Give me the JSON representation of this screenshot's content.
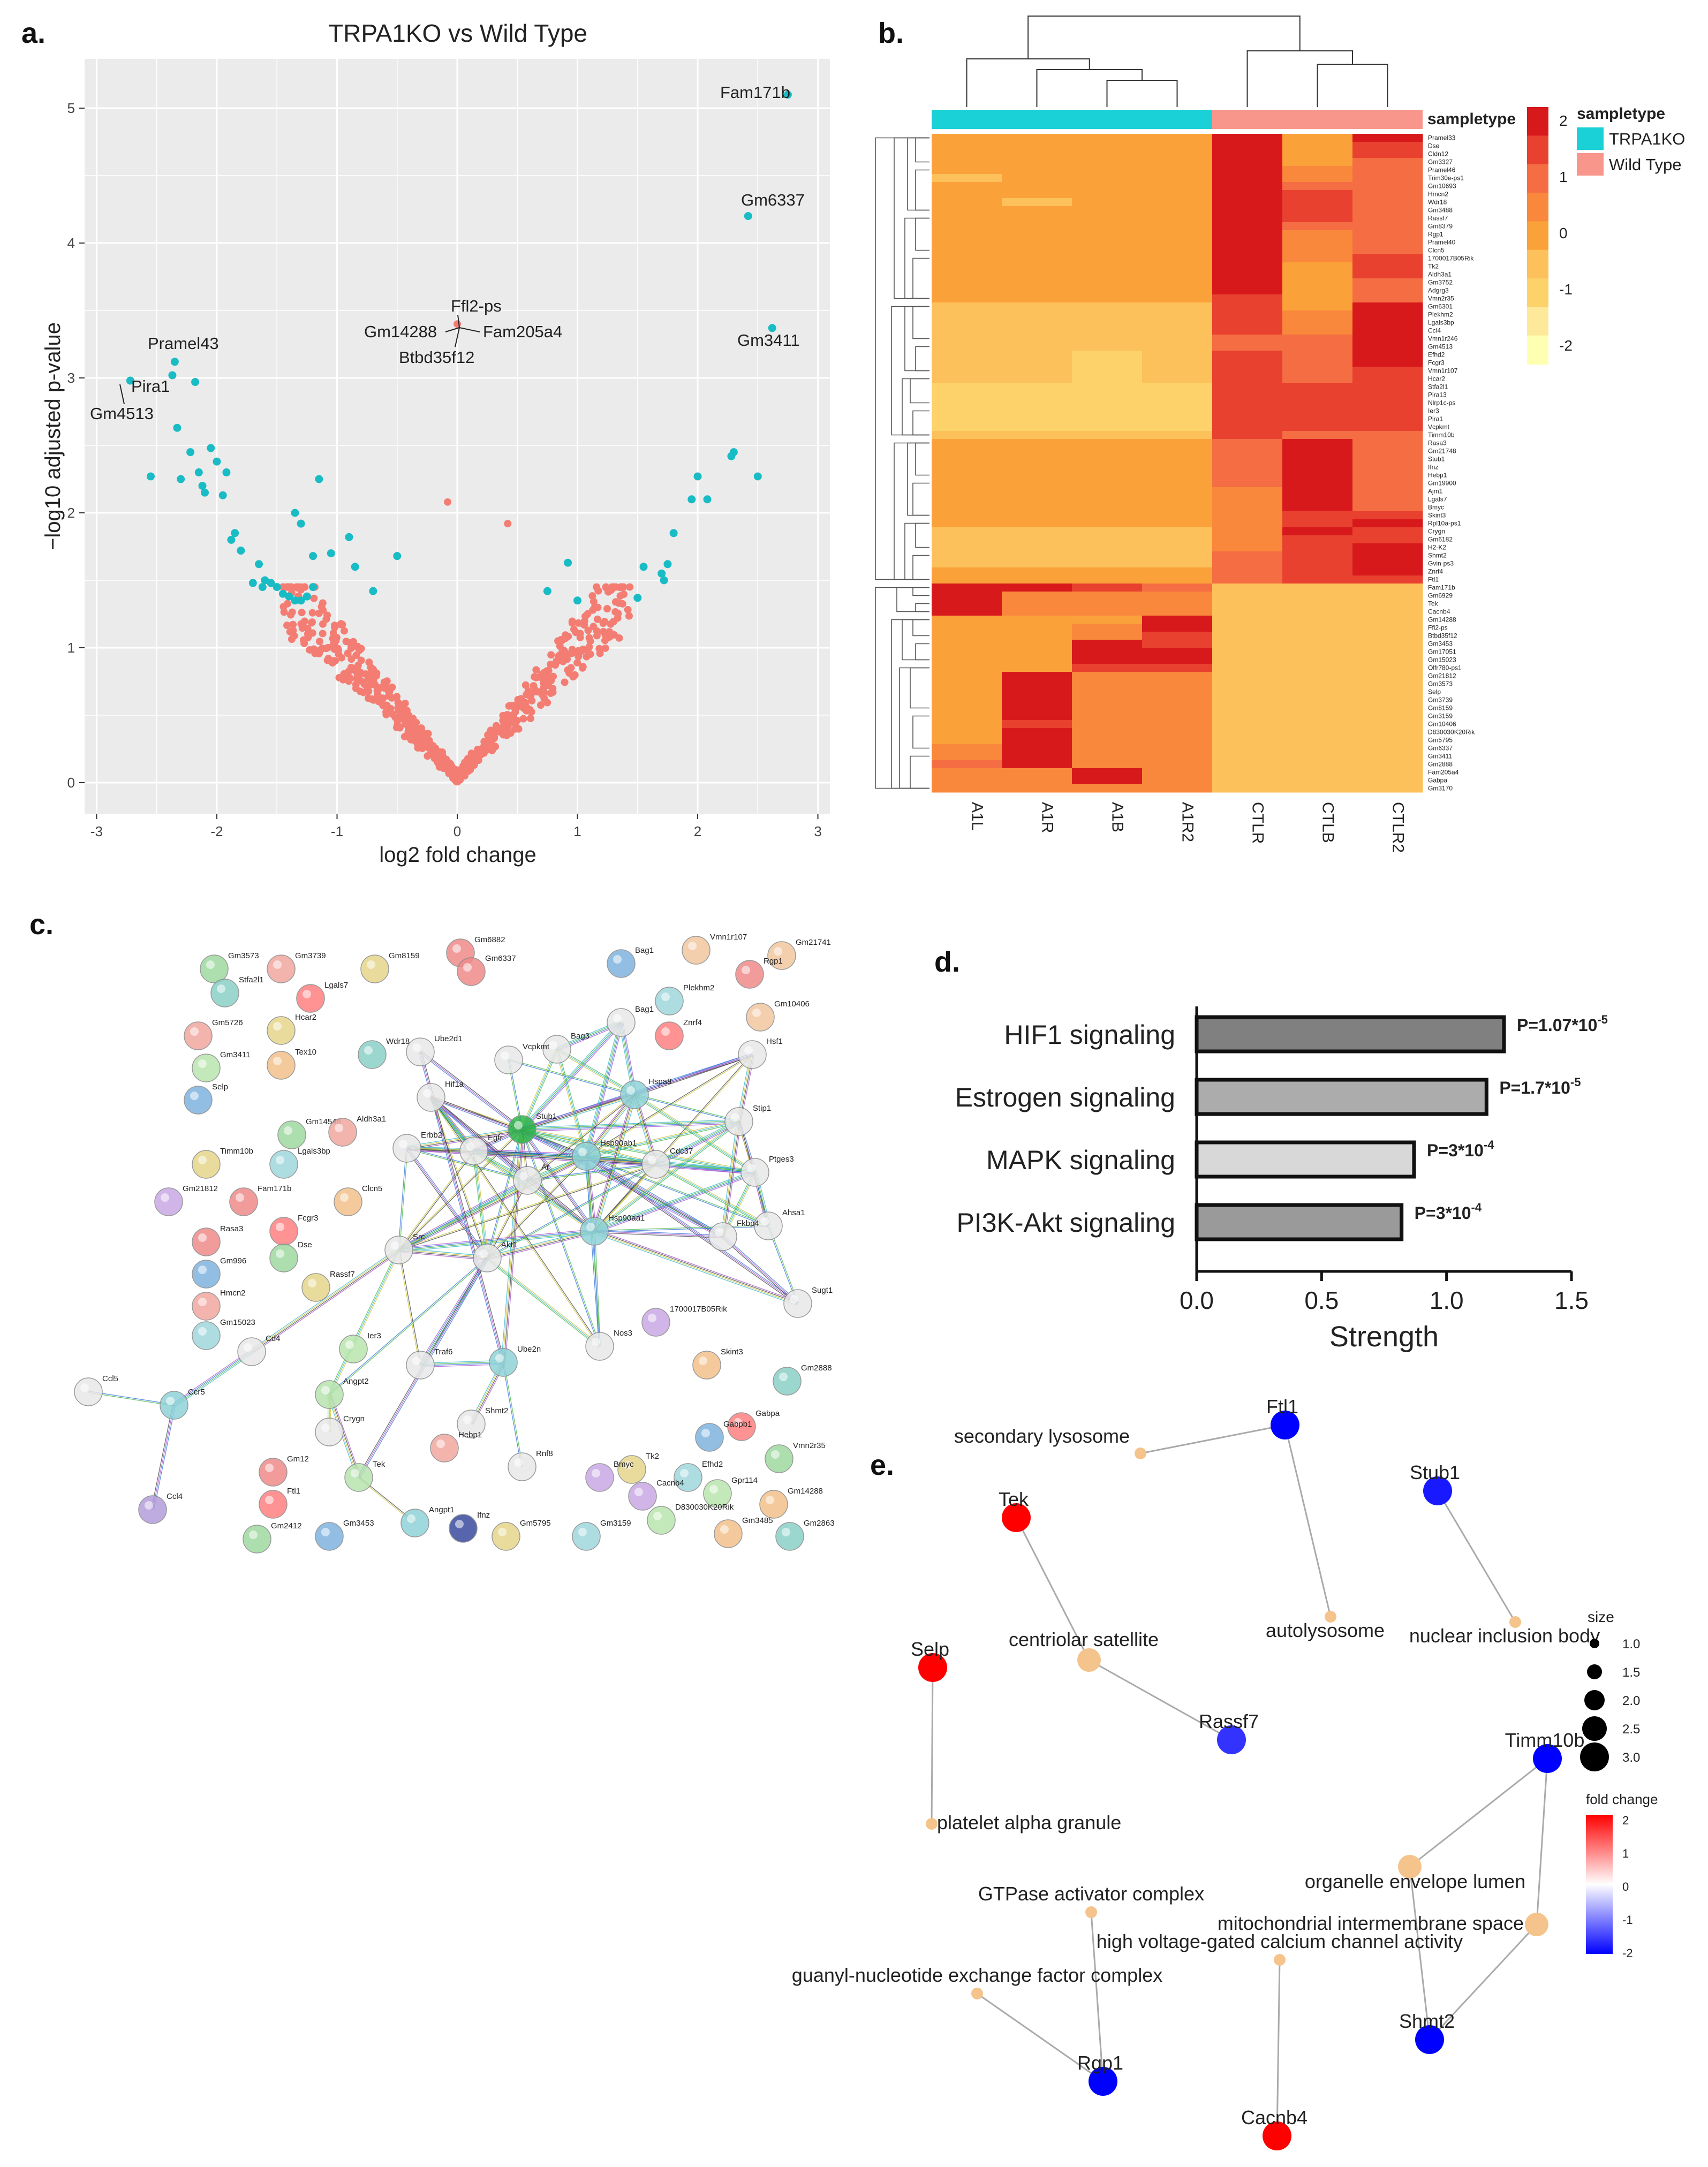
{
  "panel_labels": {
    "a": "a.",
    "b": "b.",
    "c": "c.",
    "d": "d.",
    "e": "e."
  },
  "volcano": {
    "title": "TRPA1KO vs Wild Type",
    "xlabel": "log2 fold change",
    "ylabel": "−log10 adjusted p-value",
    "xticks": [
      "-3",
      "-2",
      "-1",
      "0",
      "1",
      "2",
      "3"
    ],
    "yticks": [
      "0",
      "1",
      "2",
      "3",
      "4",
      "5"
    ],
    "colors": {
      "sig": "#19bcc4",
      "nonsig": "#f47d73",
      "panel": "#ebebeb"
    },
    "gene_labels": [
      "Fam171b",
      "Gm6337",
      "Gm3411",
      "Pramel43",
      "Pira1",
      "Gm4513",
      "Ffl2-ps",
      "Gm14288",
      "Fam205a4",
      "Btbd35f12"
    ]
  },
  "heatmap": {
    "columns": [
      "A1L",
      "A1R",
      "A1B",
      "A1R2",
      "CTLR",
      "CTLB",
      "CTLR2"
    ],
    "sampletype_label": "sampletype",
    "legend_title": "sampletype",
    "groups": [
      {
        "name": "TRPA1KO",
        "color": "#19d1d6"
      },
      {
        "name": "Wild Type",
        "color": "#f9968c"
      }
    ],
    "scale_ticks": [
      "2",
      "1",
      "0",
      "-1",
      "-2"
    ],
    "scale_colors": [
      "#d7191c",
      "#f46d43",
      "#fba13a",
      "#fdd26a",
      "#ffffb2"
    ],
    "row_labels": [
      "Pramel33",
      "Dse",
      "Cldn12",
      "Gm3327",
      "Pramel46",
      "Trim30e-ps1",
      "Gm10693",
      "Hmcn2",
      "Wdr18",
      "Gm3488",
      "Rassf7",
      "Gm8379",
      "Rgp1",
      "Pramel40",
      "Clcn5",
      "1700017B05Rik",
      "Tk2",
      "Aldh3a1",
      "Gm3752",
      "Adgrg3",
      "Vmn2r35",
      "Gm6301",
      "Plekhm2",
      "Lgals3bp",
      "Ccl4",
      "Vmn1r246",
      "Gm4513",
      "Efhd2",
      "Fcgr3",
      "Vmn1r107",
      "Hcar2",
      "Stfa2l1",
      "Pira13",
      "Nlrp1c-ps",
      "Ier3",
      "Pira1",
      "Vcpkmt",
      "Timm10b",
      "Rasa3",
      "Gm21748",
      "Stub1",
      "Ifnz",
      "Hebp1",
      "Gm19900",
      "Ajm1",
      "Lgals7",
      "Bmyc",
      "Skint3",
      "Rpl10a-ps1",
      "Crygn",
      "Gm6182",
      "H2-K2",
      "Shmt2",
      "Gvin-ps3",
      "Znrf4",
      "Ftl1",
      "Fam171b",
      "Gm6929",
      "Tek",
      "Cacnb4",
      "Gm14288",
      "Ffl2-ps",
      "Btbd35f12",
      "Gm3453",
      "Gm17051",
      "Gm15023",
      "Olfr780-ps1",
      "Gm21812",
      "Gm3573",
      "Selp",
      "Gm3739",
      "Gm8159",
      "Gm3159",
      "Gm10406",
      "D830030K20Rik",
      "Gm5795",
      "Gm6337",
      "Gm3411",
      "Gm2888",
      "Fam205a4",
      "Gabpa",
      "Gm3170"
    ],
    "values": [
      [
        0,
        0,
        0,
        0,
        2,
        0,
        2
      ],
      [
        0,
        0,
        0,
        0,
        2,
        0,
        1.5
      ],
      [
        0,
        0,
        0,
        0,
        2,
        0,
        1.5
      ],
      [
        0,
        0,
        0,
        0,
        2,
        0,
        1
      ],
      [
        0,
        0,
        0,
        0,
        2,
        0.5,
        1
      ],
      [
        -0.5,
        0,
        0,
        0,
        2,
        0.5,
        1
      ],
      [
        0,
        0,
        0,
        0,
        2,
        1,
        1
      ],
      [
        0,
        0,
        0,
        0,
        2,
        1.5,
        1
      ],
      [
        0,
        -0.5,
        0,
        0,
        2,
        1.5,
        1
      ],
      [
        0,
        0,
        0,
        0,
        2,
        1.5,
        1
      ],
      [
        0,
        0,
        0,
        0,
        2,
        1.5,
        1
      ],
      [
        0,
        0,
        0,
        0,
        2,
        1,
        1
      ],
      [
        0,
        0,
        0,
        0,
        2,
        0.5,
        1
      ],
      [
        0,
        0,
        0,
        0,
        2,
        0.5,
        1
      ],
      [
        0,
        0,
        0,
        0,
        2,
        0.5,
        1
      ],
      [
        0,
        0,
        0,
        0,
        2,
        0.5,
        1.5
      ],
      [
        0,
        0,
        0,
        0,
        2,
        0,
        1.5
      ],
      [
        0,
        0,
        0,
        0,
        2,
        0,
        1.5
      ],
      [
        0,
        0,
        0,
        0,
        2,
        0,
        1
      ],
      [
        0,
        0,
        0,
        0,
        2,
        0,
        1
      ],
      [
        0,
        0,
        0,
        0,
        1.5,
        0,
        1
      ],
      [
        -0.5,
        -0.5,
        -0.5,
        -0.5,
        1.5,
        0,
        2
      ],
      [
        -0.5,
        -0.5,
        -0.5,
        -0.5,
        1.5,
        0.5,
        2
      ],
      [
        -0.5,
        -0.5,
        -0.5,
        -0.5,
        1.5,
        0.5,
        2
      ],
      [
        -0.5,
        -0.5,
        -0.5,
        -0.5,
        1.5,
        0.5,
        2
      ],
      [
        -0.5,
        -0.5,
        -0.5,
        -0.5,
        1,
        1,
        2
      ],
      [
        -0.5,
        -0.5,
        -0.5,
        -0.5,
        1,
        1,
        2
      ],
      [
        -0.5,
        -0.5,
        -1,
        -0.5,
        1.5,
        1,
        2
      ],
      [
        -0.5,
        -0.5,
        -1,
        -0.5,
        1.5,
        1,
        2
      ],
      [
        -0.5,
        -0.5,
        -1,
        -0.5,
        1.5,
        1,
        1.5
      ],
      [
        -0.5,
        -0.5,
        -1,
        -0.5,
        1.5,
        1,
        1.5
      ],
      [
        -1,
        -1,
        -1,
        -1,
        1.5,
        1.5,
        1.5
      ],
      [
        -1,
        -1,
        -1,
        -1,
        1.5,
        1.5,
        1.5
      ],
      [
        -1,
        -1,
        -1,
        -1,
        1.5,
        1.5,
        1.5
      ],
      [
        -1,
        -1,
        -1,
        -1,
        1.5,
        1.5,
        1.5
      ],
      [
        -1,
        -1,
        -1,
        -1,
        1.5,
        1.5,
        1.5
      ],
      [
        -1,
        -1,
        -1,
        -1,
        1.5,
        1.5,
        1.5
      ],
      [
        -0.5,
        -0.5,
        -0.5,
        -0.5,
        1.5,
        1,
        1
      ],
      [
        0,
        0,
        0,
        0,
        1,
        2,
        1
      ],
      [
        0,
        0,
        0,
        0,
        1,
        2,
        1
      ],
      [
        0,
        0,
        0,
        0,
        1,
        2,
        1
      ],
      [
        0,
        0,
        0,
        0,
        1,
        2,
        1
      ],
      [
        0,
        0,
        0,
        0,
        1,
        2,
        1
      ],
      [
        0,
        0,
        0,
        0,
        1,
        2,
        1
      ],
      [
        0,
        0,
        0,
        0,
        0.5,
        2,
        1
      ],
      [
        0,
        0,
        0,
        0,
        0.5,
        2,
        1
      ],
      [
        0,
        0,
        0,
        0,
        0.5,
        2,
        1
      ],
      [
        0,
        0,
        0,
        0,
        0.5,
        1.5,
        1.5
      ],
      [
        0,
        0,
        0,
        0,
        0.5,
        1.5,
        2
      ],
      [
        -0.5,
        -0.5,
        -0.5,
        -0.5,
        0.5,
        2,
        1.5
      ],
      [
        -0.5,
        -0.5,
        -0.5,
        -0.5,
        0.5,
        1.5,
        1.5
      ],
      [
        -0.5,
        -0.5,
        -0.5,
        -0.5,
        0.5,
        1.5,
        2
      ],
      [
        -0.5,
        -0.5,
        -0.5,
        -0.5,
        1,
        1.5,
        2
      ],
      [
        -0.5,
        -0.5,
        -0.5,
        -0.5,
        1,
        1.5,
        2
      ],
      [
        0,
        0,
        0,
        0,
        1,
        1.5,
        2
      ],
      [
        0,
        0,
        0,
        0,
        1,
        1.5,
        1.5
      ],
      [
        2,
        2,
        1.5,
        1,
        -0.5,
        -0.5,
        -0.5
      ],
      [
        2,
        0.5,
        0.5,
        0.5,
        -0.5,
        -0.5,
        -0.5
      ],
      [
        2,
        0.5,
        0.5,
        0.5,
        -0.5,
        -0.5,
        -0.5
      ],
      [
        2,
        0.5,
        0.5,
        0.5,
        -0.5,
        -0.5,
        -0.5
      ],
      [
        0,
        0,
        0,
        2,
        -0.5,
        -0.5,
        -0.5
      ],
      [
        0,
        0,
        0.5,
        2,
        -0.5,
        -0.5,
        -0.5
      ],
      [
        0,
        0,
        0.5,
        1.5,
        -0.5,
        -0.5,
        -0.5
      ],
      [
        0,
        0,
        2,
        1.5,
        -0.5,
        -0.5,
        -0.5
      ],
      [
        0,
        0,
        2,
        2,
        -0.5,
        -0.5,
        -0.5
      ],
      [
        0,
        0,
        2,
        2,
        -0.5,
        -0.5,
        -0.5
      ],
      [
        0,
        0,
        1.5,
        1.5,
        -0.5,
        -0.5,
        -0.5
      ],
      [
        0,
        2,
        0.5,
        0.5,
        -0.5,
        -0.5,
        -0.5
      ],
      [
        0,
        2,
        0.5,
        0.5,
        -0.5,
        -0.5,
        -0.5
      ],
      [
        0,
        2,
        0.5,
        0.5,
        -0.5,
        -0.5,
        -0.5
      ],
      [
        0,
        2,
        0.5,
        0.5,
        -0.5,
        -0.5,
        -0.5
      ],
      [
        0,
        2,
        0.5,
        0.5,
        -0.5,
        -0.5,
        -0.5
      ],
      [
        0,
        2,
        0.5,
        0.5,
        -0.5,
        -0.5,
        -0.5
      ],
      [
        0,
        1.5,
        0.5,
        0.5,
        -0.5,
        -0.5,
        -0.5
      ],
      [
        0,
        2,
        0.5,
        0.5,
        -0.5,
        -0.5,
        -0.5
      ],
      [
        0,
        2,
        0.5,
        0.5,
        -0.5,
        -0.5,
        -0.5
      ],
      [
        0.5,
        2,
        0.5,
        0.5,
        -0.5,
        -0.5,
        -0.5
      ],
      [
        0.5,
        2,
        0.5,
        0.5,
        -0.5,
        -0.5,
        -0.5
      ],
      [
        1,
        2,
        0.5,
        0.5,
        -0.5,
        -0.5,
        -0.5
      ],
      [
        0.5,
        0.5,
        2,
        0.5,
        -0.5,
        -0.5,
        -0.5
      ],
      [
        0.5,
        0.5,
        2,
        0.5,
        -0.5,
        -0.5,
        -0.5
      ],
      [
        0.5,
        0.5,
        0.5,
        0.5,
        -0.5,
        -0.5,
        -0.5
      ]
    ]
  },
  "network": {
    "nodes_ringed": [
      {
        "name": "Hif1a"
      },
      {
        "name": "Egfr"
      },
      {
        "name": "Erbb2"
      },
      {
        "name": "Ar"
      },
      {
        "name": "Stub1"
      },
      {
        "name": "Hsp90ab1"
      },
      {
        "name": "Hspa8"
      },
      {
        "name": "Cdc37"
      },
      {
        "name": "Stip1"
      },
      {
        "name": "Ptges3"
      },
      {
        "name": "Ahsa1"
      },
      {
        "name": "Fkbp4"
      },
      {
        "name": "Hsp90aa1"
      },
      {
        "name": "Akt1"
      },
      {
        "name": "Src"
      },
      {
        "name": "Bag3"
      },
      {
        "name": "Bag1"
      },
      {
        "name": "Hsf1"
      },
      {
        "name": "Sugt1"
      },
      {
        "name": "Nos3"
      },
      {
        "name": "Traf6"
      },
      {
        "name": "Ube2n"
      },
      {
        "name": "Shmt2"
      },
      {
        "name": "Rnf8"
      },
      {
        "name": "Cd4"
      },
      {
        "name": "Ccr5"
      },
      {
        "name": "Ccl5"
      },
      {
        "name": "Ccl4"
      },
      {
        "name": "Ube2d1"
      },
      {
        "name": "Vcpkmt"
      },
      {
        "name": "Angpt2"
      },
      {
        "name": "Angpt1"
      },
      {
        "name": "Tek"
      },
      {
        "name": "Crygn"
      }
    ],
    "node_labels": [
      "Gm3573",
      "Gm3739",
      "Gm8159",
      "Gm6882",
      "Gm6337",
      "Vmn1r107",
      "Gm21741",
      "Stfa2l1",
      "Lgals7",
      "Bag1",
      "Rgp1",
      "Gm5726",
      "Hcar2",
      "Plekhm2",
      "Gm10406",
      "Gm3411",
      "Tex10",
      "Wdr18",
      "Znrf4",
      "Selp",
      "Gm14548",
      "Aldh3a1",
      "Timm10b",
      "Lgals3bp",
      "Gm21812",
      "Fam171b",
      "Clcn5",
      "Rasa3",
      "Fcgr3",
      "Gm996",
      "Dse",
      "Hmcn2",
      "Rassf7",
      "Gm15023",
      "1700017B05Rik",
      "Ier3",
      "Skint3",
      "Gm2888",
      "Gabpa",
      "Gabpb1",
      "Vmn2r35",
      "Hebp1",
      "Tk2",
      "Efhd2",
      "Cacnb4",
      "Gpr114",
      "Gm14288",
      "Gm12",
      "Ftl1",
      "Gm3453",
      "Gm2412",
      "Ifnz",
      "Gm5795",
      "Gm3159",
      "Bmyc",
      "D830030K20Rik",
      "Gm3485",
      "Gm2863"
    ]
  },
  "enrichment": {
    "xlabel": "Strength",
    "xticks": [
      "0.0",
      "0.5",
      "1.0",
      "1.5"
    ],
    "categories": [
      "HIF1 signaling",
      "Estrogen signaling",
      "MAPK signaling",
      "PI3K-Akt signaling"
    ],
    "values": [
      1.23,
      1.16,
      0.87,
      0.82
    ],
    "pvalues": [
      {
        "prefix": "P=1.07*10",
        "exp": "-5"
      },
      {
        "prefix": "P=1.7*10",
        "exp": "-5"
      },
      {
        "prefix": "P=3*10",
        "exp": "-4"
      },
      {
        "prefix": "P=3*10",
        "exp": "-4"
      }
    ],
    "colors": [
      "#808080",
      "#acacac",
      "#d8d8d8",
      "#9a9a9a"
    ]
  },
  "go_network": {
    "gene_nodes": [
      {
        "name": "Ftl1",
        "fc": -2
      },
      {
        "name": "Stub1",
        "fc": -1.8
      },
      {
        "name": "Tek",
        "fc": 2
      },
      {
        "name": "Selp",
        "fc": 2
      },
      {
        "name": "Rassf7",
        "fc": -1.6
      },
      {
        "name": "Timm10b",
        "fc": -2
      },
      {
        "name": "Shmt2",
        "fc": -2
      },
      {
        "name": "Rgp1",
        "fc": -2
      },
      {
        "name": "Cacnb4",
        "fc": 2
      }
    ],
    "term_nodes": [
      "secondary lysosome",
      "autolysosome",
      "nuclear inclusion body",
      "centriolar satellite",
      "platelet alpha granule",
      "organelle envelope lumen",
      "mitochondrial intermembrane space",
      "GTPase activator complex",
      "high voltage-gated calcium channel activity",
      "guanyl-nucleotide exchange factor complex"
    ],
    "size_title": "size",
    "size_ticks": [
      "1.0",
      "1.5",
      "2.0",
      "2.5",
      "3.0"
    ],
    "fc_title": "fold change",
    "fc_ticks": [
      "2",
      "1",
      "0",
      "-1",
      "-2"
    ],
    "term_color": "#f5c38c"
  }
}
